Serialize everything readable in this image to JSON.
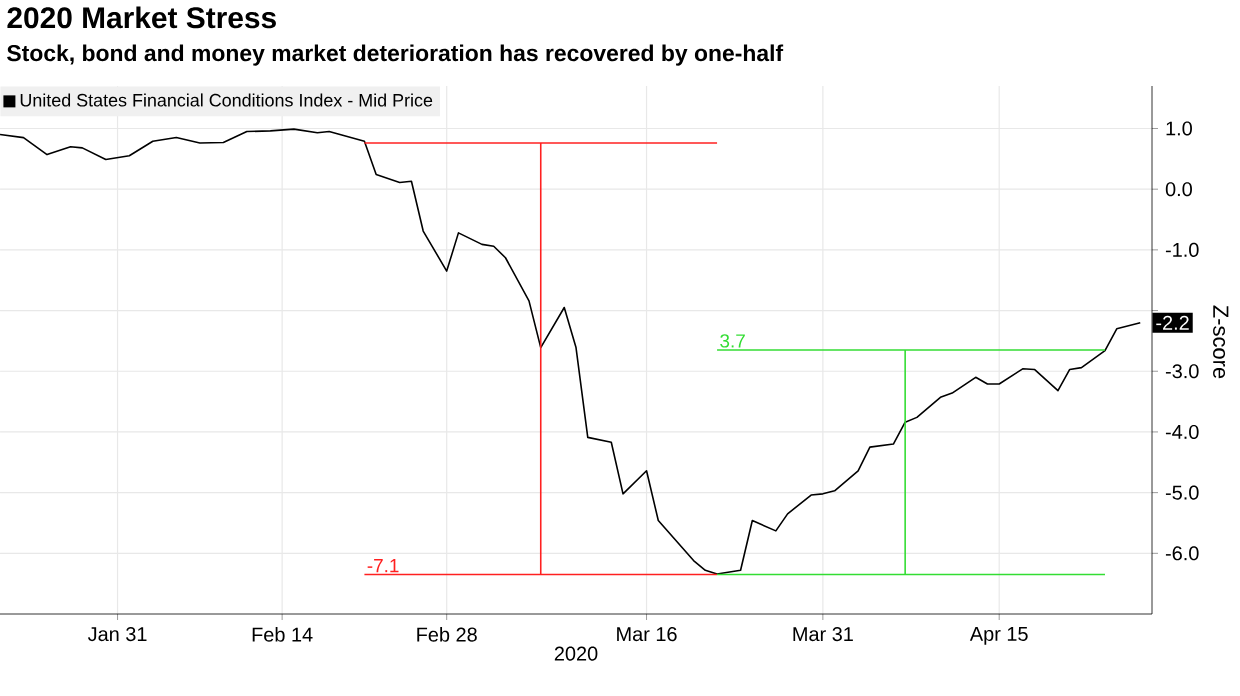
{
  "chart_data": {
    "type": "line",
    "title": "2020 Market Stress",
    "subtitle": "Stock, bond and money market deterioration has recovered by one-half",
    "xlabel": "2020",
    "ylabel": "Z-score",
    "xlim": [
      "2020-01-21",
      "2020-04-28"
    ],
    "ylim": [
      -7.0,
      1.7
    ],
    "xticks": [
      {
        "value": "2020-01-31",
        "label": "Jan 31"
      },
      {
        "value": "2020-02-14",
        "label": "Feb 14"
      },
      {
        "value": "2020-02-28",
        "label": "Feb 28"
      },
      {
        "value": "2020-03-16",
        "label": "Mar 16"
      },
      {
        "value": "2020-03-31",
        "label": "Mar 31"
      },
      {
        "value": "2020-04-15",
        "label": "Apr 15"
      }
    ],
    "yticks": [
      {
        "value": 1,
        "label": "1.0"
      },
      {
        "value": 0,
        "label": "0.0"
      },
      {
        "value": -1,
        "label": "-1.0"
      },
      {
        "value": -2,
        "label": null
      },
      {
        "value": -3,
        "label": "-3.0"
      },
      {
        "value": -4,
        "label": "-4.0"
      },
      {
        "value": -5,
        "label": "-5.0"
      },
      {
        "value": -6,
        "label": "-6.0"
      }
    ],
    "grid": true,
    "legend": "top left",
    "series": [
      {
        "name": "United States Financial Conditions Index - Mid Price",
        "color": "#000000",
        "x": [
          "2020-01-21",
          "2020-01-23",
          "2020-01-25",
          "2020-01-27",
          "2020-01-28",
          "2020-01-30",
          "2020-02-01",
          "2020-02-03",
          "2020-02-05",
          "2020-02-07",
          "2020-02-09",
          "2020-02-11",
          "2020-02-13",
          "2020-02-15",
          "2020-02-17",
          "2020-02-18",
          "2020-02-21",
          "2020-02-22",
          "2020-02-24",
          "2020-02-25",
          "2020-02-26",
          "2020-02-28",
          "2020-02-29",
          "2020-03-02",
          "2020-03-03",
          "2020-03-04",
          "2020-03-06",
          "2020-03-07",
          "2020-03-09",
          "2020-03-10",
          "2020-03-11",
          "2020-03-13",
          "2020-03-14",
          "2020-03-16",
          "2020-03-17",
          "2020-03-20",
          "2020-03-21",
          "2020-03-22",
          "2020-03-24",
          "2020-03-25",
          "2020-03-27",
          "2020-03-28",
          "2020-03-30",
          "2020-03-31",
          "2020-04-01",
          "2020-04-03",
          "2020-04-04",
          "2020-04-06",
          "2020-04-07",
          "2020-04-08",
          "2020-04-10",
          "2020-04-11",
          "2020-04-13",
          "2020-04-14",
          "2020-04-15",
          "2020-04-17",
          "2020-04-18",
          "2020-04-20",
          "2020-04-21",
          "2020-04-22",
          "2020-04-24",
          "2020-04-25",
          "2020-04-27"
        ],
        "values": [
          0.9,
          0.85,
          0.57,
          0.7,
          0.68,
          0.49,
          0.55,
          0.79,
          0.85,
          0.76,
          0.77,
          0.95,
          0.96,
          0.99,
          0.93,
          0.95,
          0.79,
          0.24,
          0.11,
          0.13,
          -0.69,
          -1.35,
          -0.72,
          -0.91,
          -0.94,
          -1.13,
          -1.84,
          -2.61,
          -1.95,
          -2.61,
          -4.09,
          -4.17,
          -5.02,
          -4.64,
          -5.46,
          -6.12,
          -6.28,
          -6.34,
          -6.28,
          -5.46,
          -5.63,
          -5.35,
          -5.04,
          -5.02,
          -4.97,
          -4.64,
          -4.25,
          -4.2,
          -3.84,
          -3.76,
          -3.43,
          -3.36,
          -3.1,
          -3.21,
          -3.21,
          -2.96,
          -2.97,
          -3.32,
          -2.97,
          -2.94,
          -2.66,
          -2.3,
          -2.2
        ]
      },
      {
        "type": "line",
        "color": "#ff2020",
        "x": [
          "2020-02-21",
          "2020-03-22"
        ],
        "values": [
          0.76,
          0.76
        ]
      },
      {
        "type": "line",
        "color": "#ff2020",
        "x": [
          "2020-02-21",
          "2020-03-22"
        ],
        "values": [
          -6.35,
          -6.35
        ]
      },
      {
        "type": "line",
        "color": "#ff2020",
        "x": [
          "2020-03-07",
          "2020-03-07"
        ],
        "values": [
          0.76,
          -6.35
        ]
      },
      {
        "type": "line",
        "color": "#33dd33",
        "x": [
          "2020-03-22",
          "2020-04-24"
        ],
        "values": [
          -2.65,
          -2.65
        ]
      },
      {
        "type": "line",
        "color": "#33dd33",
        "x": [
          "2020-03-22",
          "2020-04-24"
        ],
        "values": [
          -6.35,
          -6.35
        ]
      },
      {
        "type": "line",
        "color": "#33dd33",
        "x": [
          "2020-04-07",
          "2020-04-07"
        ],
        "values": [
          -6.35,
          -2.65
        ]
      }
    ],
    "annotations": [
      {
        "text": "-7.1",
        "x": "2020-02-21",
        "y": -6.35
      },
      {
        "text": "3.7",
        "x": "2020-03-22",
        "y": -2.65
      },
      {
        "text": "-2.2",
        "x": "2020-04-27",
        "y": -2.2
      }
    ]
  }
}
